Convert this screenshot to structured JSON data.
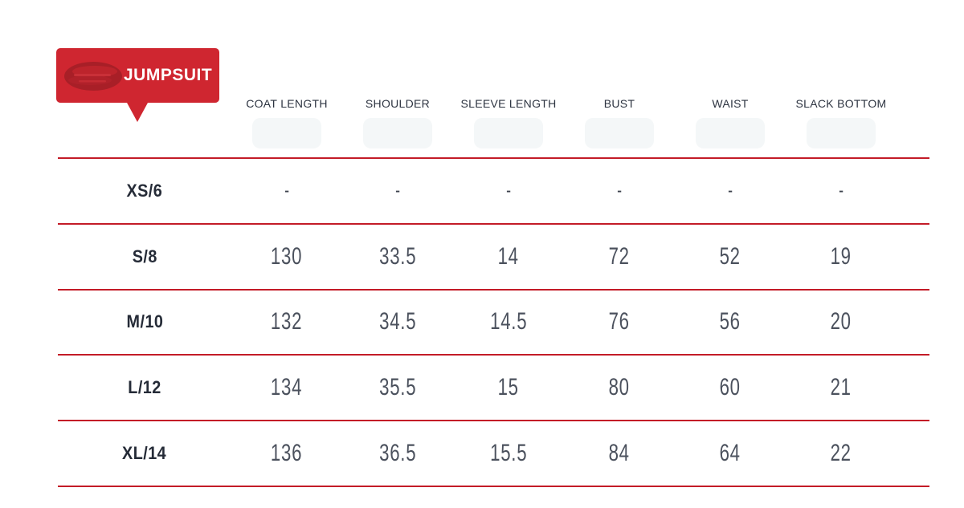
{
  "badge": {
    "label": "JUMPSUIT",
    "background_color": "#cf2630",
    "scribble_color": "#a81f27",
    "text_color": "#ffffff",
    "scribble_icon": "scribbled-out-logo"
  },
  "table": {
    "line_color": "#c31b27",
    "header_text_color": "#2c3340",
    "value_text_color": "#4b515d",
    "columns": [
      "COAT LENGTH",
      "SHOULDER",
      "SLEEVE LENGTH",
      "BUST",
      "WAIST",
      "SLACK BOTTOM"
    ],
    "rows": [
      {
        "size": "XS/6",
        "values": [
          "-",
          "-",
          "-",
          "-",
          "-",
          "-"
        ]
      },
      {
        "size": "S/8",
        "values": [
          "130",
          "33.5",
          "14",
          "72",
          "52",
          "19"
        ]
      },
      {
        "size": "M/10",
        "values": [
          "132",
          "34.5",
          "14.5",
          "76",
          "56",
          "20"
        ]
      },
      {
        "size": "L/12",
        "values": [
          "134",
          "35.5",
          "15",
          "80",
          "60",
          "21"
        ]
      },
      {
        "size": "XL/14",
        "values": [
          "136",
          "36.5",
          "15.5",
          "84",
          "64",
          "22"
        ]
      }
    ]
  }
}
